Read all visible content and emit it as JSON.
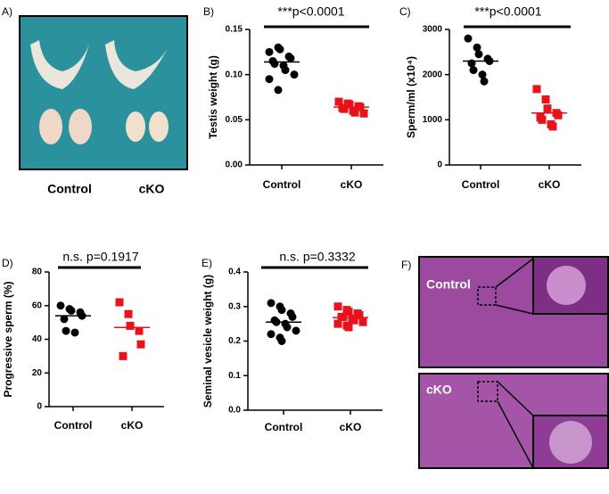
{
  "chart_data": [
    {
      "type": "strip",
      "panel_label": "B)",
      "title": "***p<0.0001",
      "ylabel": "Testis weight (g)",
      "categories": [
        "Control",
        "cKO"
      ],
      "colors": [
        "#000000",
        "#e8121b"
      ],
      "markers": [
        "circle",
        "square"
      ],
      "values": [
        [
          0.125,
          0.13,
          0.128,
          0.12,
          0.118,
          0.115,
          0.112,
          0.11,
          0.105,
          0.1,
          0.095,
          0.083
        ],
        [
          0.07,
          0.068,
          0.067,
          0.065,
          0.064,
          0.063,
          0.062,
          0.06,
          0.058,
          0.057
        ]
      ],
      "means": [
        0.114,
        0.064
      ],
      "ylim": [
        0,
        0.15
      ],
      "yticks": [
        {
          "value": 0,
          "label": "0.00"
        },
        {
          "value": 0.05,
          "label": "0.05"
        },
        {
          "value": 0.1,
          "label": "0.10"
        },
        {
          "value": 0.15,
          "label": "0.15"
        }
      ]
    },
    {
      "type": "strip",
      "panel_label": "C)",
      "title": "***p<0.0001",
      "ylabel": "Sperm/ml (x10⁴)",
      "categories": [
        "Control",
        "cKO"
      ],
      "colors": [
        "#000000",
        "#e8121b"
      ],
      "markers": [
        "circle",
        "square"
      ],
      "values": [
        [
          2800,
          2600,
          2450,
          2350,
          2300,
          2250,
          2100,
          2000,
          1850
        ],
        [
          1680,
          1450,
          1250,
          1150,
          1100,
          1050,
          1000,
          900,
          850
        ]
      ],
      "means": [
        2300,
        1150
      ],
      "ylim": [
        0,
        3000
      ],
      "yticks": [
        0,
        1000,
        2000,
        3000
      ]
    },
    {
      "type": "strip",
      "panel_label": "D)",
      "title": "n.s. p=0.1917",
      "ylabel": "Progressive sperm (%)",
      "categories": [
        "Control",
        "cKO"
      ],
      "colors": [
        "#000000",
        "#e8121b"
      ],
      "markers": [
        "circle",
        "square"
      ],
      "values": [
        [
          60,
          58,
          57,
          56,
          54,
          52,
          45,
          44
        ],
        [
          62,
          55,
          48,
          45,
          37,
          30
        ]
      ],
      "means": [
        54,
        47
      ],
      "ylim": [
        0,
        80
      ],
      "yticks": [
        0,
        20,
        40,
        60,
        80
      ]
    },
    {
      "type": "strip",
      "panel_label": "E)",
      "title": "n.s. p=0.3332",
      "ylabel": "Seminal vesicle weight (g)",
      "categories": [
        "Control",
        "cKO"
      ],
      "colors": [
        "#000000",
        "#e8121b"
      ],
      "markers": [
        "circle",
        "square"
      ],
      "values": [
        [
          0.31,
          0.3,
          0.29,
          0.28,
          0.27,
          0.26,
          0.255,
          0.25,
          0.24,
          0.23,
          0.22,
          0.21,
          0.2
        ],
        [
          0.3,
          0.29,
          0.285,
          0.28,
          0.275,
          0.27,
          0.27,
          0.265,
          0.26,
          0.255,
          0.25,
          0.245,
          0.24
        ]
      ],
      "means": [
        0.255,
        0.268
      ],
      "ylim": [
        0,
        0.4
      ],
      "yticks": [
        {
          "value": 0,
          "label": "0.0"
        },
        {
          "value": 0.1,
          "label": "0.1"
        },
        {
          "value": 0.2,
          "label": "0.2"
        },
        {
          "value": 0.3,
          "label": "0.3"
        },
        {
          "value": 0.4,
          "label": "0.4"
        }
      ]
    }
  ],
  "panel_a": {
    "label": "A)",
    "captions": [
      "Control",
      "cKO"
    ]
  },
  "panel_f": {
    "label": "F)",
    "captions": [
      "Control",
      "cKO"
    ]
  }
}
